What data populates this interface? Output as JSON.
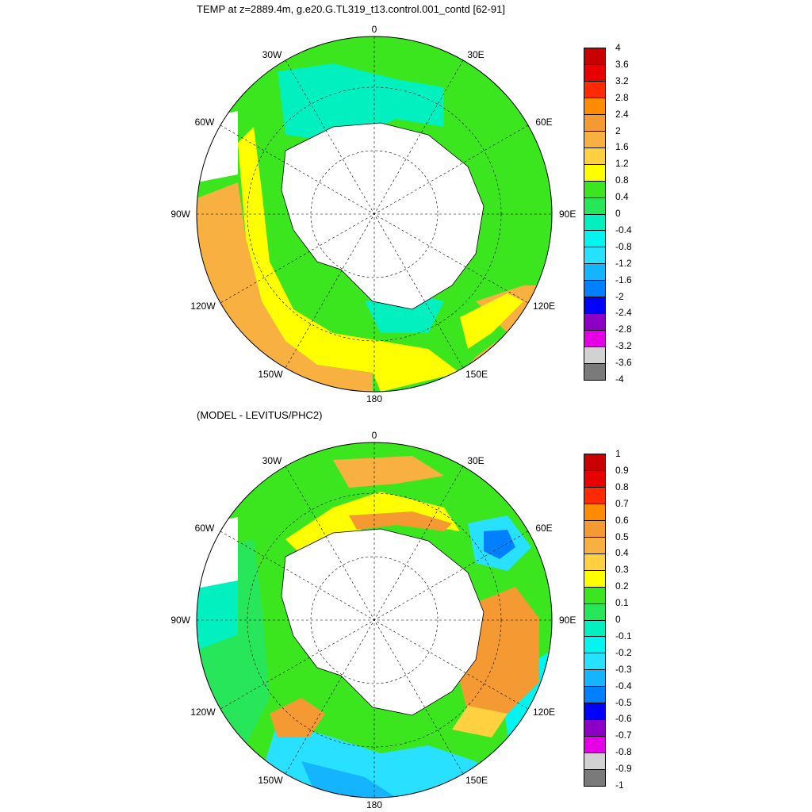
{
  "top_panel": {
    "title": "TEMP at z=2889.4m, g.e20.G.TL319_t13.control.001_contd [62-91]",
    "lon_labels": [
      "0",
      "30E",
      "60E",
      "90E",
      "120E",
      "150E",
      "180",
      "150W",
      "120W",
      "90W",
      "60W",
      "30W"
    ],
    "colorbar": {
      "labels": [
        "4",
        "3.6",
        "3.2",
        "2.8",
        "2.4",
        "2",
        "1.6",
        "1.2",
        "0.8",
        "0.4",
        "0",
        "-0.4",
        "-0.8",
        "-1.2",
        "-1.6",
        "-2",
        "-2.4",
        "-2.8",
        "-3.2",
        "-3.6",
        "-4"
      ],
      "colors": [
        "#c80000",
        "#e60000",
        "#ff2a00",
        "#ff8c00",
        "#f59a32",
        "#f8b040",
        "#ffd040",
        "#ffff00",
        "#3ce61e",
        "#28e65a",
        "#00f0c0",
        "#00f5f0",
        "#28e0ff",
        "#14b4ff",
        "#0080ff",
        "#0000ff",
        "#8c00c8",
        "#e600e6",
        "#d2d2d2",
        "#7a7a7a"
      ]
    }
  },
  "bottom_panel": {
    "title": "(MODEL - LEVITUS/PHC2)",
    "lon_labels": [
      "0",
      "30E",
      "60E",
      "90E",
      "120E",
      "150E",
      "180",
      "150W",
      "120W",
      "90W",
      "60W",
      "30W"
    ],
    "colorbar": {
      "labels": [
        "1",
        "0.9",
        "0.8",
        "0.7",
        "0.6",
        "0.5",
        "0.4",
        "0.3",
        "0.2",
        "0.1",
        "0",
        "-0.1",
        "-0.2",
        "-0.3",
        "-0.4",
        "-0.5",
        "-0.6",
        "-0.7",
        "-0.8",
        "-0.9",
        "-1"
      ],
      "colors": [
        "#c80000",
        "#e60000",
        "#ff2a00",
        "#ff8c00",
        "#f59a32",
        "#f8b040",
        "#ffd040",
        "#ffff00",
        "#3ce61e",
        "#28e65a",
        "#00f0c0",
        "#00f5f0",
        "#28e0ff",
        "#14b4ff",
        "#0080ff",
        "#0000ff",
        "#8c00c8",
        "#e600e6",
        "#d2d2d2",
        "#7a7a7a"
      ]
    }
  }
}
